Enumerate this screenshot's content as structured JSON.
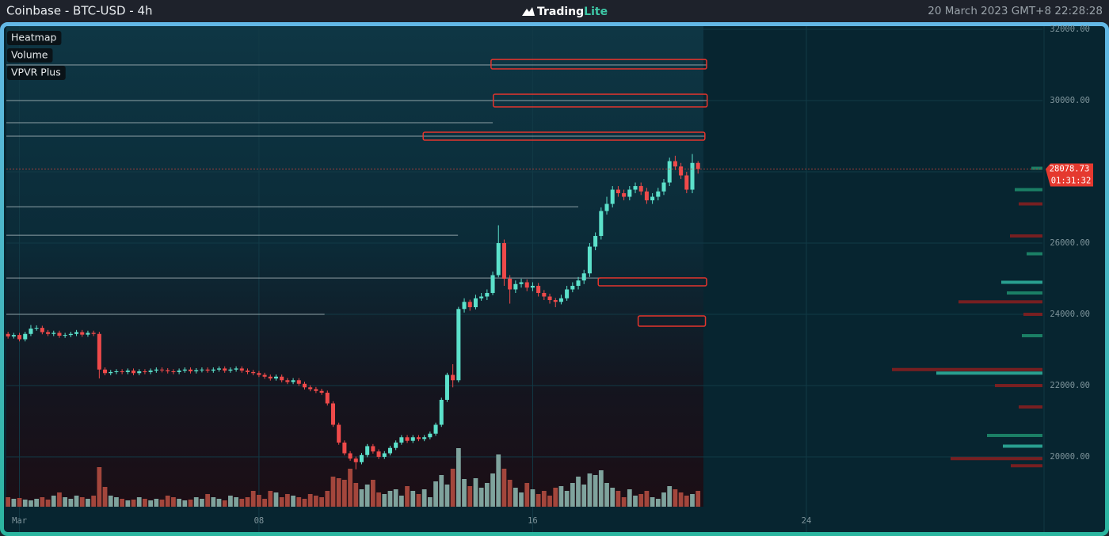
{
  "header": {
    "title": "Coinbase - BTC-USD - 4h",
    "logo_main": "Trading",
    "logo_accent": "Lite",
    "datetime": "20 March 2023 GMT+8 22:28:28"
  },
  "layers": [
    "Heatmap",
    "Volume",
    "VPVR Plus"
  ],
  "chart_data": {
    "type": "candlestick",
    "up_color": "#5ce1cb",
    "down_color": "#ef4a4a",
    "volume_up_color": "#7fa39d",
    "volume_down_color": "#a3463c",
    "grid": true,
    "xlim": [
      -0.3,
      181.4
    ],
    "xticks": [
      {
        "value": 2,
        "label": "Mar"
      },
      {
        "value": 44,
        "label": "08"
      },
      {
        "value": 92,
        "label": "16"
      },
      {
        "value": 140,
        "label": "24"
      }
    ],
    "ylim": [
      18600,
      32090
    ],
    "yticks": [
      {
        "value": 20000,
        "label": "20000.00"
      },
      {
        "value": 22000,
        "label": "22000.00"
      },
      {
        "value": 24000,
        "label": "24000.00"
      },
      {
        "value": 26000,
        "label": "26000.00"
      },
      {
        "value": 28000,
        "label": "28000.00"
      },
      {
        "value": 30000,
        "label": "30000.00"
      },
      {
        "value": 32000,
        "label": "32000.00"
      }
    ],
    "open": [
      23450,
      23380,
      23420,
      23300,
      23450,
      23600,
      23620,
      23500,
      23450,
      23480,
      23400,
      23420,
      23450,
      23500,
      23430,
      23480,
      23450,
      22450,
      22350,
      22380,
      22400,
      22380,
      22420,
      22350,
      22400,
      22380,
      22420,
      22450,
      22430,
      22400,
      22380,
      22420,
      22450,
      22400,
      22430,
      22450,
      22420,
      22450,
      22480,
      22420,
      22450,
      22480,
      22420,
      22380,
      22350,
      22300,
      22250,
      22200,
      22250,
      22150,
      22100,
      22150,
      22050,
      21950,
      21900,
      21850,
      21800,
      21500,
      20900,
      20400,
      20100,
      19950,
      19850,
      20050,
      20300,
      20150,
      20000,
      20100,
      20250,
      20400,
      20550,
      20450,
      20550,
      20500,
      20550,
      20650,
      20900,
      21600,
      22300,
      22150,
      24150,
      24350,
      24200,
      24450,
      24500,
      24600,
      25100,
      26000,
      25000,
      24700,
      24850,
      24900,
      24750,
      24800,
      24600,
      24500,
      24400,
      24350,
      24450,
      24700,
      24800,
      24950,
      25150,
      25900,
      26200,
      26900,
      27100,
      27500,
      27400,
      27300,
      27500,
      27600,
      27450,
      27200,
      27300,
      27450,
      27700,
      28300,
      28150,
      27900,
      27500,
      28250
    ],
    "high": [
      23510,
      23480,
      23480,
      23510,
      23700,
      23690,
      23680,
      23560,
      23540,
      23540,
      23480,
      23510,
      23560,
      23560,
      23540,
      23540,
      23510,
      22510,
      22440,
      22460,
      22460,
      22480,
      22480,
      22460,
      22460,
      22480,
      22510,
      22510,
      22490,
      22460,
      22480,
      22510,
      22510,
      22490,
      22510,
      22510,
      22510,
      22540,
      22540,
      22510,
      22540,
      22540,
      22480,
      22440,
      22410,
      22360,
      22310,
      22310,
      22310,
      22210,
      22210,
      22210,
      22110,
      22010,
      21960,
      21910,
      21860,
      21560,
      20960,
      20460,
      20160,
      20010,
      20110,
      20360,
      20360,
      20210,
      20160,
      20310,
      20460,
      20610,
      20610,
      20610,
      20610,
      20610,
      20710,
      20960,
      21660,
      22360,
      22600,
      24210,
      24450,
      24410,
      24550,
      24600,
      24700,
      25200,
      26500,
      26100,
      25100,
      24950,
      25000,
      24980,
      24900,
      24880,
      24680,
      24580,
      24460,
      24550,
      24800,
      24900,
      25050,
      25250,
      26000,
      26300,
      27000,
      27300,
      27600,
      27600,
      27500,
      27600,
      27700,
      27700,
      27550,
      27400,
      27550,
      27800,
      28400,
      28450,
      28250,
      28000,
      28500,
      28300
    ],
    "low": [
      23320,
      23320,
      23240,
      23240,
      23390,
      23540,
      23440,
      23390,
      23390,
      23340,
      23340,
      23360,
      23390,
      23370,
      23370,
      23390,
      22200,
      22290,
      22290,
      22320,
      22320,
      22320,
      22290,
      22290,
      22320,
      22320,
      22360,
      22370,
      22340,
      22320,
      22320,
      22360,
      22340,
      22340,
      22370,
      22360,
      22360,
      22390,
      22360,
      22360,
      22390,
      22360,
      22320,
      22290,
      22240,
      22190,
      22140,
      22140,
      22090,
      22040,
      22040,
      21990,
      21890,
      21840,
      21790,
      21740,
      21440,
      20840,
      20340,
      20040,
      19890,
      19650,
      19790,
      19990,
      20090,
      19940,
      19940,
      20040,
      20190,
      20340,
      20390,
      20390,
      20440,
      20440,
      20490,
      20590,
      20840,
      21540,
      21950,
      22090,
      24050,
      24100,
      24140,
      24380,
      24400,
      24540,
      25040,
      24800,
      24300,
      24600,
      24750,
      24650,
      24650,
      24500,
      24400,
      24300,
      24200,
      24280,
      24380,
      24620,
      24700,
      24850,
      25050,
      25800,
      26100,
      26800,
      27000,
      27300,
      27200,
      27200,
      27400,
      27350,
      27100,
      27100,
      27200,
      27350,
      27600,
      28050,
      27800,
      27400,
      27400,
      27950
    ],
    "close": [
      23380,
      23420,
      23300,
      23450,
      23600,
      23620,
      23500,
      23450,
      23480,
      23400,
      23420,
      23450,
      23500,
      23430,
      23480,
      23450,
      22450,
      22350,
      22380,
      22400,
      22380,
      22420,
      22350,
      22400,
      22380,
      22420,
      22450,
      22430,
      22400,
      22380,
      22420,
      22450,
      22400,
      22430,
      22450,
      22420,
      22450,
      22480,
      22420,
      22450,
      22480,
      22420,
      22380,
      22350,
      22300,
      22250,
      22200,
      22250,
      22150,
      22100,
      22150,
      22050,
      21950,
      21900,
      21850,
      21800,
      21500,
      20900,
      20400,
      20100,
      19950,
      19850,
      20050,
      20300,
      20150,
      20000,
      20100,
      20250,
      20400,
      20550,
      20450,
      20550,
      20500,
      20550,
      20650,
      20900,
      21600,
      22300,
      22150,
      24150,
      24350,
      24200,
      24450,
      24500,
      24600,
      25100,
      26000,
      25000,
      24700,
      24850,
      24900,
      24750,
      24800,
      24600,
      24500,
      24400,
      24350,
      24450,
      24700,
      24800,
      24950,
      25150,
      25900,
      26200,
      26900,
      27100,
      27500,
      27400,
      27300,
      27500,
      27600,
      27450,
      27200,
      27300,
      27450,
      27700,
      28300,
      28150,
      27900,
      27500,
      28250,
      28078.73
    ],
    "volume_ylim": [
      0,
      100
    ],
    "volume": [
      12,
      10,
      11,
      9,
      8,
      10,
      12,
      9,
      14,
      18,
      12,
      10,
      14,
      12,
      10,
      14,
      50,
      25,
      14,
      12,
      10,
      8,
      9,
      12,
      10,
      8,
      10,
      9,
      14,
      12,
      10,
      8,
      9,
      12,
      10,
      16,
      12,
      10,
      8,
      14,
      12,
      10,
      12,
      20,
      15,
      10,
      20,
      18,
      12,
      16,
      14,
      12,
      10,
      16,
      14,
      12,
      20,
      38,
      36,
      34,
      48,
      30,
      22,
      28,
      34,
      18,
      16,
      20,
      22,
      14,
      26,
      20,
      16,
      22,
      12,
      32,
      40,
      28,
      48,
      74,
      35,
      26,
      36,
      24,
      30,
      42,
      66,
      48,
      34,
      24,
      18,
      30,
      22,
      16,
      20,
      14,
      24,
      26,
      20,
      30,
      38,
      28,
      42,
      40,
      46,
      30,
      24,
      20,
      12,
      22,
      14,
      16,
      20,
      12,
      10,
      18,
      26,
      22,
      18,
      14,
      16,
      20
    ],
    "countdown": "01:31:32",
    "liquidity_levels": [
      {
        "price": 31000,
        "end": 122.5
      },
      {
        "price": 30000,
        "end": 122.6
      },
      {
        "price": 29380,
        "end": 85
      },
      {
        "price": 29000,
        "end": 122.2
      },
      {
        "price": 27020,
        "end": 100
      },
      {
        "price": 26220,
        "end": 78.9
      },
      {
        "price": 25020,
        "end": 104
      },
      {
        "price": 24000,
        "end": 55.5
      }
    ],
    "highlight_boxes": [
      {
        "low": 30889,
        "high": 31155,
        "start": 84.7,
        "end": 122.5
      },
      {
        "low": 29822,
        "high": 30178,
        "start": 85.1,
        "end": 122.6
      },
      {
        "low": 28889,
        "high": 29111,
        "start": 72.8,
        "end": 122.2
      },
      {
        "low": 24800,
        "high": 25022,
        "start": 103.5,
        "end": 122.5
      },
      {
        "low": 23667,
        "high": 23955,
        "start": 110.5,
        "end": 122.3
      }
    ],
    "profile_xlim": [
      0,
      200
    ],
    "volume_profile": [
      {
        "price": 28100,
        "value": 14,
        "color": "#1f8f6f"
      },
      {
        "price": 27500,
        "value": 35,
        "color": "#1f8f6f"
      },
      {
        "price": 27100,
        "value": 30,
        "color": "#8b1f1f"
      },
      {
        "price": 26200,
        "value": 41,
        "color": "#8b1f1f"
      },
      {
        "price": 25700,
        "value": 20,
        "color": "#1f8f6f"
      },
      {
        "price": 24900,
        "value": 52,
        "color": "#2fb5a0"
      },
      {
        "price": 24600,
        "value": 45,
        "color": "#1f8f6f"
      },
      {
        "price": 24350,
        "value": 106,
        "color": "#8b1f1f"
      },
      {
        "price": 24000,
        "value": 24,
        "color": "#8b1f1f"
      },
      {
        "price": 23400,
        "value": 26,
        "color": "#1f8f6f"
      },
      {
        "price": 22450,
        "value": 190,
        "color": "#8b1f1f"
      },
      {
        "price": 22350,
        "value": 134,
        "color": "#2fb5a0"
      },
      {
        "price": 22000,
        "value": 60,
        "color": "#8b1f1f"
      },
      {
        "price": 21400,
        "value": 30,
        "color": "#8b1f1f"
      },
      {
        "price": 20600,
        "value": 70,
        "color": "#1f8f6f"
      },
      {
        "price": 20300,
        "value": 50,
        "color": "#2fb5a0"
      },
      {
        "price": 19950,
        "value": 116,
        "color": "#8b1f1f"
      },
      {
        "price": 19750,
        "value": 40,
        "color": "#8b1f1f"
      }
    ]
  }
}
